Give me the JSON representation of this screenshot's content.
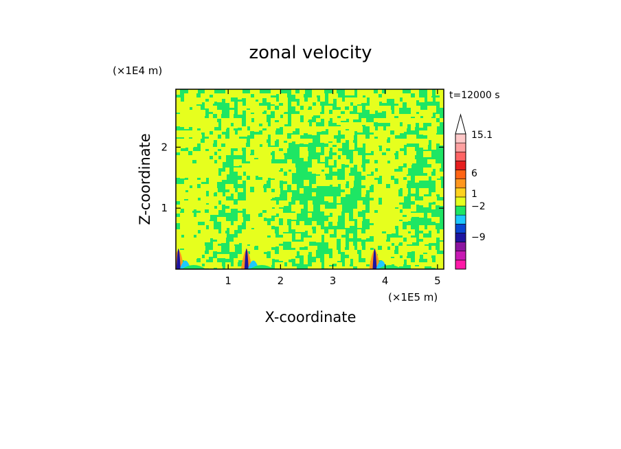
{
  "chart_data": {
    "type": "heatmap",
    "title": "zonal velocity",
    "xlabel": "X-coordinate",
    "ylabel": "Z-coordinate",
    "x_unit": "(×1E5 m)",
    "y_unit": "(×1E4 m)",
    "time_label": "t=12000 s",
    "xlim": [
      0.0,
      5.12
    ],
    "ylim": [
      0.0,
      2.95
    ],
    "x_ticks": [
      1,
      2,
      3,
      4,
      5
    ],
    "x_tick_labels": [
      "1",
      "2",
      "3",
      "4",
      "5"
    ],
    "y_ticks": [
      1,
      2
    ],
    "y_tick_labels": [
      "1",
      "2"
    ],
    "colorbar": {
      "colors": [
        "#ff1aa8",
        "#c81ab4",
        "#8c14a0",
        "#1e14a0",
        "#0a46d2",
        "#1ec8ff",
        "#1ee664",
        "#e6ff1e",
        "#ffd21e",
        "#ff961e",
        "#ff6414",
        "#e61e1e",
        "#ff6464",
        "#ffa0a0",
        "#ffc8c8"
      ],
      "labeled_values": [
        "15.1",
        "6",
        "1",
        "−2",
        "−9"
      ],
      "extend_max": true
    },
    "dominant_colors": {
      "green": "#1ee664",
      "yellow": "#e6ff1e"
    },
    "yellow_bands_x": [
      [
        0.02,
        0.9
      ],
      [
        1.36,
        2.05
      ],
      [
        3.72,
        4.4
      ]
    ],
    "mountain_peaks_x": [
      0.05,
      1.35,
      3.8
    ]
  }
}
